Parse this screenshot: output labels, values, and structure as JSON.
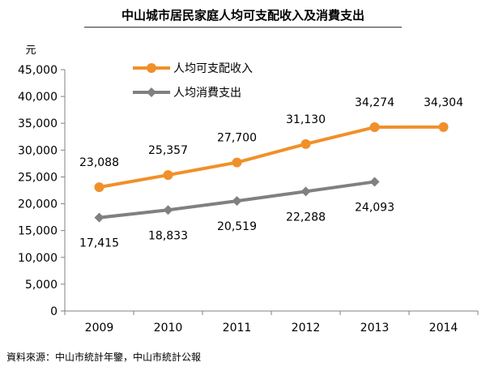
{
  "chart_data": {
    "type": "line",
    "title": "中山城市居民家庭人均可支配收入及消費支出",
    "ylabel": "元",
    "xlabel": "",
    "categories": [
      "2009",
      "2010",
      "2011",
      "2012",
      "2013",
      "2014"
    ],
    "ylim": [
      0,
      45000
    ],
    "yticks": [
      "0",
      "5,000",
      "10,000",
      "15,000",
      "20,000",
      "25,000",
      "30,000",
      "35,000",
      "40,000",
      "45,000"
    ],
    "grid": false,
    "legend": "top-left",
    "series": [
      {
        "name": "人均可支配收入",
        "color": "#F0902A",
        "values": [
          23088,
          25357,
          27700,
          31130,
          34274,
          34304
        ],
        "labels": [
          "23,088",
          "25,357",
          "27,700",
          "31,130",
          "34,274",
          "34,304"
        ]
      },
      {
        "name": "人均消費支出",
        "color": "#808080",
        "values": [
          17415,
          18833,
          20519,
          22288,
          24093,
          null
        ],
        "labels": [
          "17,415",
          "18,833",
          "20,519",
          "22,288",
          "24,093",
          null
        ]
      }
    ]
  },
  "source": "資料來源：中山市統計年鑒，中山市統計公報"
}
